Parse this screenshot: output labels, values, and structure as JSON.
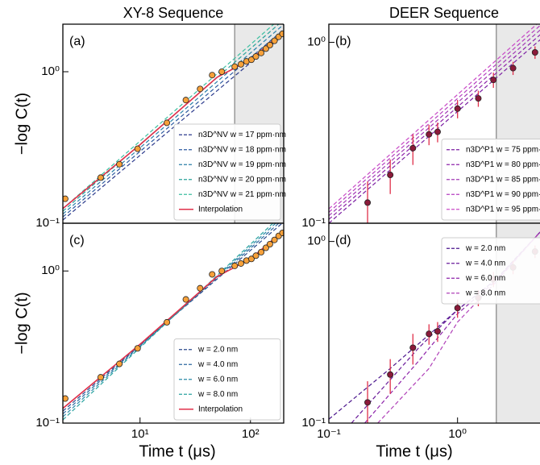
{
  "chart_data": [
    {
      "type": "line",
      "title": "XY-8 Sequence",
      "panel_label": "(a)",
      "ylabel": "−log C(t)",
      "xscale": "log",
      "yscale": "log",
      "xlim": [
        2,
        200
      ],
      "ylim": [
        0.1,
        2.06
      ],
      "yticks": [
        {
          "value": 0.1,
          "label": "10⁻¹"
        },
        {
          "value": 1,
          "label": "10⁰"
        }
      ],
      "shade_xlim": [
        72,
        200
      ],
      "legend": "lower right",
      "series": [
        {
          "name": "n3D^NV w = 17 ppm·nm",
          "color": "#2b3a8c",
          "style": "dashed",
          "x": [
            2,
            200
          ],
          "values": [
            0.105,
            1.75
          ]
        },
        {
          "name": "n3D^NV w = 18 ppm·nm",
          "color": "#2c5aa0",
          "style": "dashed",
          "x": [
            2,
            200
          ],
          "values": [
            0.11,
            1.9
          ]
        },
        {
          "name": "n3D^NV w = 19 ppm·nm",
          "color": "#2a7fa8",
          "style": "dashed",
          "x": [
            2,
            200
          ],
          "values": [
            0.115,
            2.05
          ]
        },
        {
          "name": "n3D^NV w = 20 ppm·nm",
          "color": "#2aa39a",
          "style": "dashed",
          "x": [
            2,
            200
          ],
          "values": [
            0.12,
            2.2
          ]
        },
        {
          "name": "n3D^NV w = 21 ppm·nm",
          "color": "#3cbfa0",
          "style": "dashed",
          "x": [
            2,
            200
          ],
          "values": [
            0.125,
            2.35
          ]
        },
        {
          "name": "Interpolation",
          "color": "#e0304a",
          "style": "solid",
          "x": [
            2,
            10,
            50,
            100,
            200
          ],
          "values": [
            0.125,
            0.33,
            0.92,
            1.2,
            1.85
          ]
        },
        {
          "color": "#f7a13a",
          "style": "markers",
          "x": [
            2.1,
            4.4,
            6.5,
            9.5,
            17.5,
            26,
            35,
            45,
            55,
            72,
            82,
            92,
            102,
            112,
            125,
            138,
            150,
            165,
            180,
            195
          ],
          "values": [
            0.145,
            0.2,
            0.245,
            0.31,
            0.46,
            0.65,
            0.77,
            0.95,
            1.0,
            1.08,
            1.12,
            1.17,
            1.2,
            1.26,
            1.33,
            1.42,
            1.5,
            1.6,
            1.7,
            1.78
          ]
        }
      ]
    },
    {
      "type": "line",
      "title": "DEER Sequence",
      "panel_label": "(b)",
      "xscale": "log",
      "yscale": "log",
      "xlim": [
        0.1,
        4.5
      ],
      "ylim": [
        0.1,
        1.26
      ],
      "yticks": [
        {
          "value": 0.1,
          "label": "10⁻¹"
        },
        {
          "value": 1,
          "label": "10⁰"
        }
      ],
      "shade_xlim": [
        2,
        4.5
      ],
      "legend": "lower right",
      "series": [
        {
          "name": "n3D^P1 w = 75 ppm·nm",
          "color": "#7b1fa2",
          "style": "dashed",
          "x": [
            0.1,
            4.5
          ],
          "values": [
            0.1,
            1.05
          ]
        },
        {
          "name": "n3D^P1 w = 80 ppm·nm",
          "color": "#8e24aa",
          "style": "dashed",
          "x": [
            0.1,
            4.5
          ],
          "values": [
            0.105,
            1.12
          ]
        },
        {
          "name": "n3D^P1 w = 85 ppm·nm",
          "color": "#a23bb5",
          "style": "dashed",
          "x": [
            0.1,
            4.5
          ],
          "values": [
            0.11,
            1.19
          ]
        },
        {
          "name": "n3D^P1 w = 90 ppm·nm",
          "color": "#b53fc0",
          "style": "dashed",
          "x": [
            0.1,
            4.5
          ],
          "values": [
            0.115,
            1.26
          ]
        },
        {
          "name": "n3D^P1 w = 95 ppm·nm",
          "color": "#c94cc7",
          "style": "dashed",
          "x": [
            0.1,
            4.5
          ],
          "values": [
            0.12,
            1.33
          ]
        },
        {
          "color": "#8b1a3a",
          "error_color": "#e0304a",
          "style": "markers",
          "x": [
            0.2,
            0.3,
            0.45,
            0.6,
            0.7,
            1.0,
            1.45,
            1.9,
            2.7,
            4.0
          ],
          "values": [
            0.13,
            0.185,
            0.26,
            0.31,
            0.32,
            0.43,
            0.49,
            0.62,
            0.72,
            0.88
          ],
          "errors": [
            0.04,
            0.04,
            0.05,
            0.04,
            0.04,
            0.05,
            0.05,
            0.06,
            0.06,
            0.07
          ]
        }
      ]
    },
    {
      "type": "line",
      "panel_label": "(c)",
      "ylabel": "−log C(t)",
      "xlabel": "Time t (μs)",
      "xscale": "log",
      "yscale": "log",
      "xlim": [
        2,
        200
      ],
      "ylim": [
        0.1,
        2.06
      ],
      "xticks": [
        {
          "value": 10,
          "label": "10¹"
        },
        {
          "value": 100,
          "label": "10²"
        }
      ],
      "yticks": [
        {
          "value": 0.1,
          "label": "10⁻¹"
        },
        {
          "value": 1,
          "label": "10⁰"
        }
      ],
      "legend": "lower right",
      "series": [
        {
          "name": "w = 2.0 nm",
          "color": "#2b4a8c",
          "style": "dashed",
          "x": [
            2,
            200
          ],
          "values": [
            0.12,
            2.1
          ]
        },
        {
          "name": "w = 4.0 nm",
          "color": "#2c6aa0",
          "style": "dashed",
          "x": [
            2,
            200
          ],
          "values": [
            0.115,
            2.2
          ]
        },
        {
          "name": "w = 6.0 nm",
          "color": "#2a8aa8",
          "style": "dashed",
          "x": [
            2,
            200
          ],
          "values": [
            0.11,
            2.3
          ]
        },
        {
          "name": "w = 8.0 nm",
          "color": "#2aa3a0",
          "style": "dashed",
          "x": [
            2,
            200
          ],
          "values": [
            0.105,
            2.4
          ]
        },
        {
          "name": "Interpolation",
          "color": "#e0304a",
          "style": "solid",
          "x": [
            2,
            10,
            50,
            100,
            200
          ],
          "values": [
            0.125,
            0.33,
            0.92,
            1.2,
            1.85
          ]
        },
        {
          "color": "#f7a13a",
          "style": "markers",
          "x": [
            2.1,
            4.4,
            6.5,
            9.5,
            17.5,
            26,
            35,
            45,
            55,
            72,
            82,
            92,
            102,
            112,
            125,
            138,
            150,
            165,
            180,
            195
          ],
          "values": [
            0.145,
            0.2,
            0.245,
            0.31,
            0.46,
            0.65,
            0.77,
            0.95,
            1.0,
            1.08,
            1.12,
            1.17,
            1.2,
            1.26,
            1.33,
            1.42,
            1.5,
            1.6,
            1.7,
            1.78
          ]
        }
      ]
    },
    {
      "type": "line",
      "panel_label": "(d)",
      "xlabel": "Time t (μs)",
      "xscale": "log",
      "yscale": "log",
      "xlim": [
        0.1,
        4.5
      ],
      "ylim": [
        0.1,
        1.26
      ],
      "xticks": [
        {
          "value": 0.1,
          "label": "10⁻¹"
        },
        {
          "value": 1,
          "label": "10⁰"
        }
      ],
      "yticks": [
        {
          "value": 0.1,
          "label": "10⁻¹"
        },
        {
          "value": 1,
          "label": "10⁰"
        }
      ],
      "shade_xlim": [
        2,
        4.5
      ],
      "legend": "upper left",
      "series": [
        {
          "name": "w = 2.0 nm",
          "color": "#4a148c",
          "style": "dashed",
          "x": [
            0.1,
            0.3,
            1,
            2,
            4.5
          ],
          "values": [
            0.105,
            0.2,
            0.42,
            0.62,
            1.15
          ]
        },
        {
          "name": "w = 4.0 nm",
          "color": "#6a1b9a",
          "style": "dashed",
          "x": [
            0.15,
            0.5,
            1,
            2,
            4.5
          ],
          "values": [
            0.1,
            0.26,
            0.42,
            0.62,
            1.15
          ]
        },
        {
          "name": "w = 6.0 nm",
          "color": "#8e24aa",
          "style": "dashed",
          "x": [
            0.19,
            0.5,
            1,
            2,
            4.5
          ],
          "values": [
            0.1,
            0.22,
            0.4,
            0.61,
            1.15
          ]
        },
        {
          "name": "w = 8.0 nm",
          "color": "#b040b8",
          "style": "dashed",
          "x": [
            0.24,
            0.6,
            1,
            2,
            4.5
          ],
          "values": [
            0.1,
            0.2,
            0.36,
            0.6,
            1.15
          ]
        },
        {
          "color": "#8b1a3a",
          "error_color": "#e0304a",
          "style": "markers",
          "x": [
            0.2,
            0.3,
            0.45,
            0.6,
            0.7,
            1.0,
            1.45,
            1.9,
            2.7,
            4.0
          ],
          "values": [
            0.13,
            0.185,
            0.26,
            0.31,
            0.32,
            0.43,
            0.49,
            0.62,
            0.72,
            0.88
          ],
          "errors": [
            0.04,
            0.04,
            0.05,
            0.04,
            0.04,
            0.05,
            0.05,
            0.06,
            0.06,
            0.07
          ]
        }
      ]
    }
  ]
}
